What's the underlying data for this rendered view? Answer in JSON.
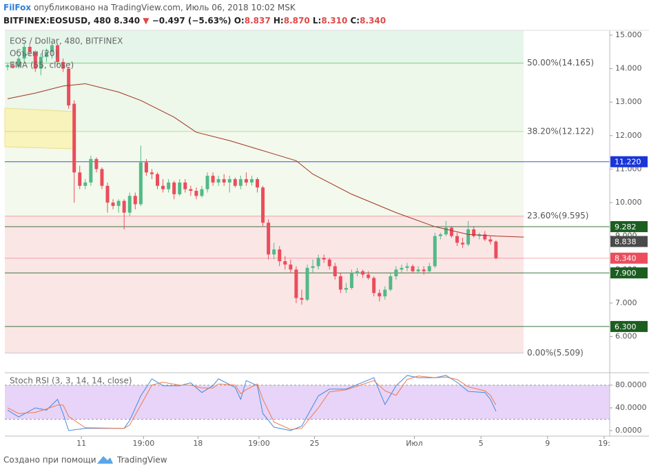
{
  "header": {
    "author": "FilFox",
    "published": "опубликовано на TradingView.com, Июль 06, 2018 10:02 MSK",
    "symbol": "BITFINEX:EOSUSD, 480",
    "last": "8.340",
    "arrow": "▼",
    "change": "−0.497 (−5.63%)",
    "ohlc": [
      {
        "label": "O:",
        "value": "8.837"
      },
      {
        "label": "H:",
        "value": "8.870"
      },
      {
        "label": "L:",
        "value": "8.310"
      },
      {
        "label": "C:",
        "value": "8.340"
      }
    ]
  },
  "chart_data": [
    {
      "type": "candlestick",
      "title": "EOS / Dollar, 480, BITFINEX",
      "volume_label": "Объем (20)",
      "x": [
        0,
        1,
        2,
        3,
        4,
        5,
        6,
        7,
        8,
        9,
        10,
        11,
        12,
        13,
        14,
        15,
        16,
        17,
        18,
        19,
        20,
        21,
        22,
        23,
        24,
        25,
        26,
        27,
        28,
        29,
        30,
        31,
        32,
        33,
        34,
        35,
        36,
        37,
        38,
        39,
        40,
        41,
        42,
        43,
        44,
        45,
        46,
        47,
        48,
        49,
        50,
        51,
        52,
        53,
        54,
        55,
        56,
        57,
        58,
        59,
        60,
        61,
        62,
        63,
        64,
        65,
        66,
        67,
        68,
        69,
        70,
        71,
        72,
        73,
        74,
        75,
        76,
        77,
        78,
        79,
        80,
        81,
        82,
        83,
        84,
        85,
        86,
        87,
        88
      ],
      "open": [
        14.05,
        14.1,
        14.05,
        14.3,
        14.65,
        14.5,
        14.0,
        14.35,
        14.5,
        14.7,
        14.2,
        14.0,
        12.95,
        10.9,
        10.5,
        10.6,
        11.3,
        11.0,
        10.5,
        10.0,
        9.9,
        10.05,
        9.7,
        10.2,
        9.95,
        11.2,
        10.9,
        10.85,
        10.5,
        10.4,
        10.6,
        10.25,
        10.6,
        10.4,
        10.35,
        10.2,
        10.4,
        10.8,
        10.6,
        10.7,
        10.6,
        10.7,
        10.5,
        10.7,
        10.6,
        10.7,
        10.45,
        9.4,
        8.45,
        8.6,
        8.25,
        8.15,
        8.0,
        7.15,
        7.1,
        8.05,
        8.1,
        8.35,
        8.3,
        8.1,
        7.8,
        7.4,
        7.45,
        7.9,
        7.95,
        7.85,
        7.75,
        7.3,
        7.2,
        7.4,
        7.8,
        8.0,
        8.05,
        8.1,
        7.95,
        8.0,
        7.95,
        8.1,
        9.0,
        9.05,
        9.25,
        9.0,
        8.8,
        8.75,
        9.2,
        9.0,
        9.05,
        8.9,
        8.837
      ],
      "high": [
        14.15,
        14.2,
        14.4,
        14.75,
        14.7,
        14.55,
        14.45,
        14.6,
        14.8,
        14.75,
        14.3,
        14.05,
        13.05,
        11.1,
        10.7,
        11.4,
        11.35,
        11.05,
        10.6,
        10.1,
        10.1,
        10.1,
        10.3,
        10.3,
        11.7,
        11.3,
        11.0,
        10.9,
        10.7,
        10.7,
        10.65,
        10.7,
        10.7,
        10.5,
        10.45,
        10.5,
        10.9,
        10.9,
        10.8,
        10.85,
        10.8,
        10.75,
        10.8,
        10.9,
        10.8,
        10.75,
        10.5,
        9.5,
        8.8,
        8.7,
        8.4,
        8.3,
        8.1,
        7.4,
        8.15,
        8.3,
        8.45,
        8.45,
        8.35,
        8.2,
        7.9,
        7.6,
        8.0,
        8.05,
        8.0,
        7.95,
        7.8,
        7.4,
        7.5,
        7.9,
        8.1,
        8.15,
        8.2,
        8.15,
        8.1,
        8.1,
        8.2,
        9.1,
        9.1,
        9.45,
        9.3,
        9.1,
        8.95,
        9.45,
        9.3,
        9.1,
        9.15,
        9.0,
        8.87
      ],
      "low": [
        13.95,
        14.0,
        14.0,
        14.2,
        14.4,
        13.9,
        13.8,
        14.2,
        14.3,
        14.1,
        13.9,
        12.8,
        10.0,
        10.4,
        10.4,
        10.5,
        10.9,
        10.4,
        9.7,
        9.8,
        9.7,
        9.2,
        9.6,
        9.8,
        9.9,
        10.8,
        10.7,
        10.4,
        10.3,
        10.3,
        10.1,
        10.2,
        10.3,
        10.2,
        10.1,
        10.15,
        10.3,
        10.5,
        10.5,
        10.5,
        10.3,
        10.45,
        10.4,
        10.5,
        10.5,
        10.3,
        9.3,
        8.3,
        8.3,
        8.1,
        8.0,
        7.9,
        7.0,
        6.95,
        7.05,
        7.9,
        8.0,
        8.2,
        8.0,
        7.7,
        7.3,
        7.3,
        7.4,
        7.8,
        7.75,
        7.7,
        7.2,
        7.05,
        7.1,
        7.35,
        7.7,
        7.9,
        7.95,
        7.9,
        7.9,
        7.85,
        7.9,
        8.05,
        8.9,
        9.0,
        8.95,
        8.7,
        8.65,
        8.7,
        8.95,
        8.9,
        8.85,
        8.75,
        8.31
      ],
      "close": [
        14.1,
        14.05,
        14.3,
        14.65,
        14.5,
        14.0,
        14.35,
        14.5,
        14.7,
        14.2,
        14.0,
        12.9,
        10.9,
        10.5,
        10.6,
        11.3,
        11.0,
        10.5,
        10.0,
        9.9,
        10.05,
        9.7,
        10.2,
        9.95,
        11.2,
        10.9,
        10.85,
        10.5,
        10.4,
        10.6,
        10.25,
        10.6,
        10.4,
        10.35,
        10.2,
        10.4,
        10.8,
        10.6,
        10.7,
        10.6,
        10.7,
        10.5,
        10.7,
        10.6,
        10.7,
        10.45,
        9.4,
        8.45,
        8.6,
        8.25,
        8.15,
        8.0,
        7.15,
        7.1,
        8.05,
        8.1,
        8.35,
        8.3,
        8.1,
        7.8,
        7.4,
        7.45,
        7.9,
        7.95,
        7.85,
        7.75,
        7.3,
        7.2,
        7.4,
        7.8,
        8.0,
        8.05,
        8.1,
        7.95,
        8.0,
        7.95,
        8.1,
        9.0,
        9.05,
        9.25,
        9.0,
        8.8,
        8.75,
        9.2,
        9.0,
        9.05,
        8.9,
        8.837,
        8.34
      ],
      "up_color": "#53b987",
      "down_color": "#eb4d5c",
      "ema": {
        "name": "EMA (55, close)",
        "color": "#a0341f",
        "x": [
          0,
          5,
          10,
          14,
          20,
          24,
          30,
          34,
          40,
          45,
          52,
          55,
          62,
          70,
          77,
          83,
          88,
          93
        ],
        "values": [
          13.1,
          13.27,
          13.48,
          13.55,
          13.3,
          13.05,
          12.55,
          12.1,
          11.85,
          11.6,
          11.25,
          10.85,
          10.25,
          9.7,
          9.28,
          9.05,
          9.0,
          8.97
        ]
      },
      "fib_levels": [
        {
          "value": 14.165,
          "label": "50.00%(14.165)",
          "color": "#7ccf7c",
          "text_color": "#44b044",
          "fill": "#e6f5ea"
        },
        {
          "value": 12.122,
          "label": "38.20%(12.122)",
          "color": "#bde08a",
          "text_color": "#8cc63f",
          "fill": "#edf7ea"
        },
        {
          "value": 9.595,
          "label": "23.60%(9.595)",
          "color": "#f2a0a0",
          "text_color": "#e04848",
          "fill": "#f3f9ec"
        },
        {
          "value": 5.509,
          "label": "0.00%(5.509)",
          "color": "#c8c8c8",
          "text_color": "#888888",
          "fill": "#fbe6e6"
        }
      ],
      "price_lines": [
        {
          "value": 11.22,
          "label": "11.220",
          "color": "#1a35d8",
          "line": true
        },
        {
          "value": 9.282,
          "label": "9.282",
          "color": "#1b5e20",
          "line": true
        },
        {
          "value": 8.838,
          "label": "8.838",
          "color": "#4a4a4a",
          "line": false
        },
        {
          "value": 8.34,
          "label": "8.340",
          "color": "#eb4d5c",
          "line": true
        },
        {
          "value": 7.9,
          "label": "7.900",
          "color": "#1b5e20",
          "line": true
        },
        {
          "value": 6.3,
          "label": "6.300",
          "color": "#1b5e20",
          "line": true
        }
      ],
      "xlim": [
        -0.5,
        108.5
      ],
      "ylim": [
        4.94,
        15.144
      ],
      "yticks": [
        {
          "value": 15,
          "label": "15.000"
        },
        {
          "value": 14,
          "label": "14.000"
        },
        {
          "value": 13,
          "label": "13.000"
        },
        {
          "value": 12,
          "label": "12.000"
        },
        {
          "value": 11,
          "label": "11.000"
        },
        {
          "value": 10,
          "label": "10.000"
        },
        {
          "value": 9,
          "label": "9.000"
        },
        {
          "value": 8,
          "label": "8.000"
        },
        {
          "value": 7,
          "label": "7.000"
        },
        {
          "value": 6,
          "label": "6.000"
        }
      ]
    },
    {
      "type": "line",
      "title": "Stoch RSI (3, 3, 14, 14, close)",
      "x": [
        0,
        2,
        5,
        7,
        9,
        10,
        11,
        14,
        21,
        22,
        24,
        26,
        28,
        31,
        33,
        35,
        37,
        38,
        41,
        42,
        43,
        45,
        46,
        48,
        51,
        53,
        56,
        58,
        61,
        63,
        66,
        68,
        70,
        72,
        74,
        77,
        79,
        81,
        83,
        86,
        87,
        88
      ],
      "series": [
        {
          "color": "#3d8be0",
          "values": [
            36,
            24,
            40,
            36,
            55,
            30,
            0,
            4,
            4,
            18,
            61,
            91,
            79,
            79,
            84,
            67,
            79,
            91,
            76,
            55,
            88,
            79,
            30,
            6,
            0,
            8,
            61,
            73,
            73,
            81,
            93,
            46,
            79,
            97,
            93,
            93,
            97,
            85,
            69,
            67,
            55,
            34
          ]
        },
        {
          "color": "#f2784b",
          "values": [
            40,
            30,
            32,
            38,
            45,
            45,
            25,
            5,
            4,
            10,
            45,
            80,
            85,
            80,
            80,
            75,
            75,
            82,
            80,
            65,
            72,
            82,
            55,
            15,
            2,
            4,
            40,
            68,
            72,
            78,
            88,
            70,
            62,
            90,
            96,
            93,
            94,
            90,
            77,
            70,
            62,
            45
          ]
        }
      ],
      "band": [
        20,
        80
      ],
      "band_color": "#e3cdf7",
      "xlim": [
        -0.5,
        108.5
      ],
      "ylim": [
        -9.7,
        101.8
      ],
      "yticks": [
        {
          "value": 80,
          "label": "80.0000"
        },
        {
          "value": 40,
          "label": "40.0000"
        },
        {
          "value": 0,
          "label": "0.0000"
        }
      ],
      "xticks": [
        {
          "value": 13.3,
          "label": "11"
        },
        {
          "value": 24.5,
          "label": "19:00"
        },
        {
          "value": 34.3,
          "label": "18"
        },
        {
          "value": 45.3,
          "label": "19:00"
        },
        {
          "value": 55.3,
          "label": "25"
        },
        {
          "value": 73.3,
          "label": "Июл"
        },
        {
          "value": 85.3,
          "label": "5"
        },
        {
          "value": 97.3,
          "label": "9"
        },
        {
          "value": 107.5,
          "label": "19:"
        }
      ]
    }
  ],
  "footer": {
    "text": "Создано при помощи",
    "brand": "TradingView"
  }
}
